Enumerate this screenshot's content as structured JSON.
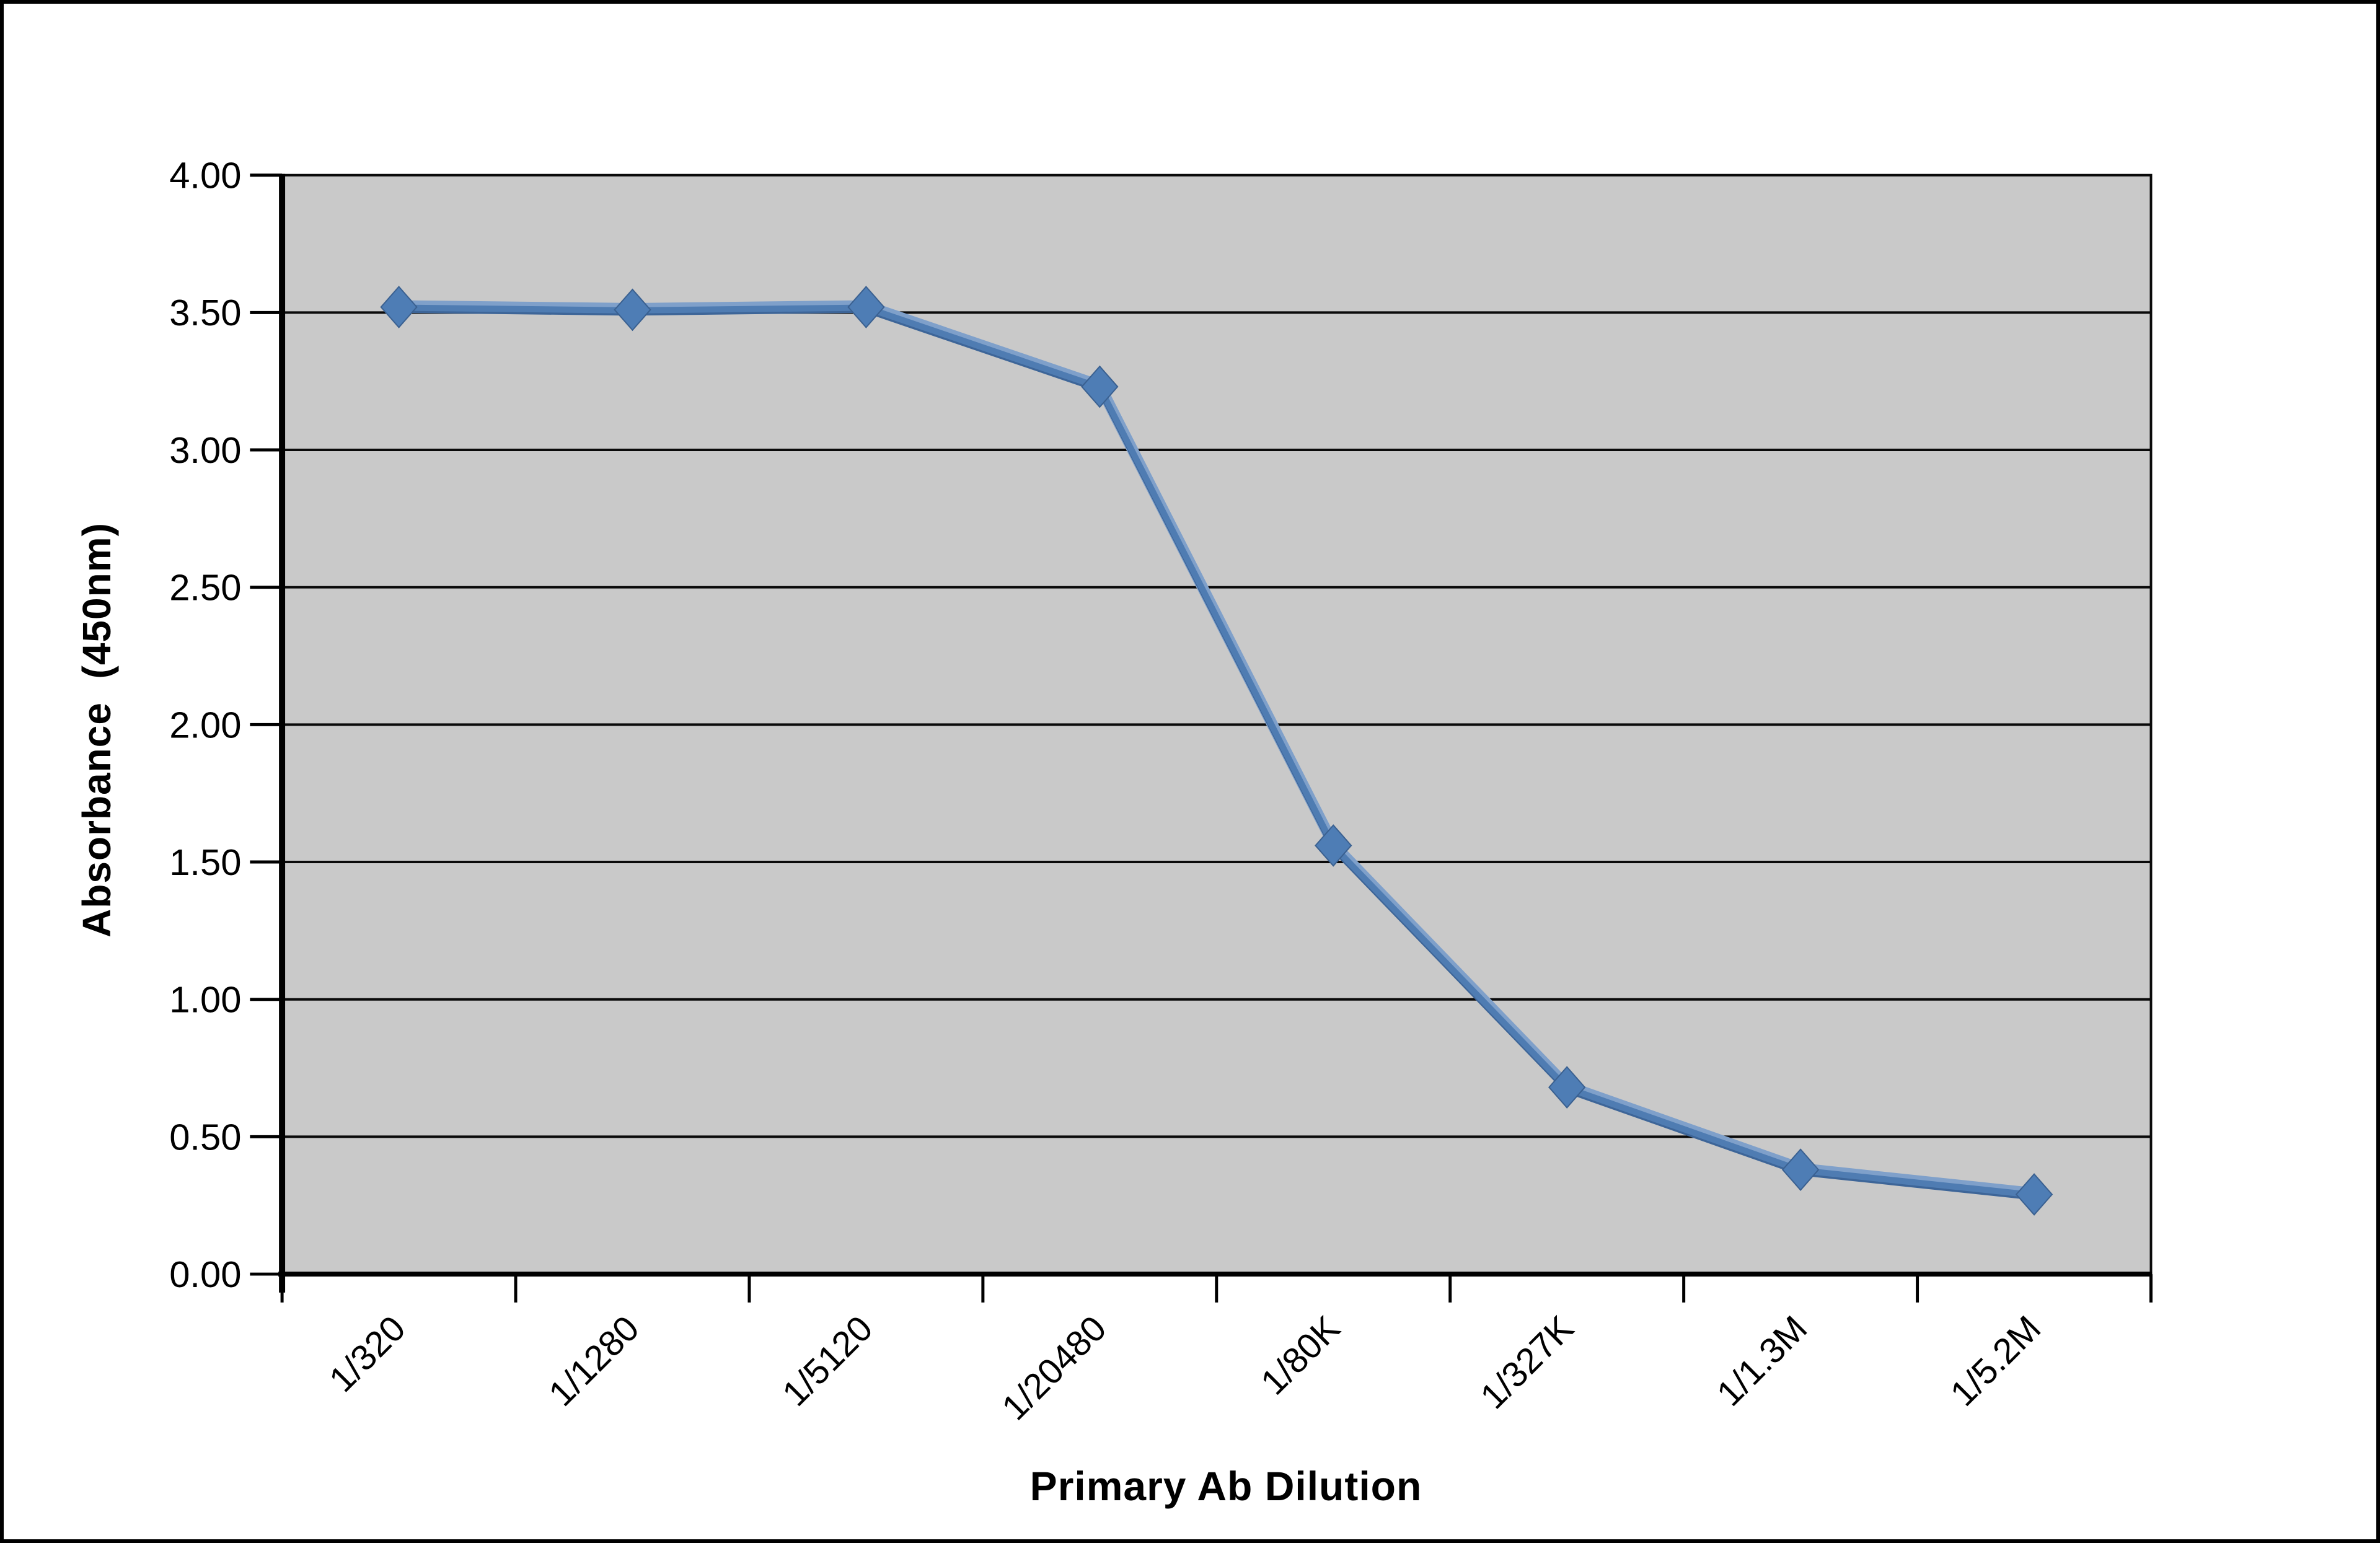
{
  "chart_data": {
    "type": "line",
    "categories": [
      "1/320",
      "1/1280",
      "1/5120",
      "1/20480",
      "1/80K",
      "1/327K",
      "1/1.3M",
      "1/5.2M"
    ],
    "series": [
      {
        "name": "Absorbance",
        "values": [
          3.52,
          3.51,
          3.52,
          3.23,
          1.56,
          0.68,
          0.38,
          0.29
        ]
      }
    ],
    "title": "",
    "xlabel": "Primary Ab Dilution",
    "ylabel": "Absorbance  (450nm)",
    "ylim": [
      0,
      4
    ],
    "ytick_step": 0.5,
    "y_tick_labels": [
      "4.00",
      "3.50",
      "3.00",
      "2.50",
      "2.00",
      "1.50",
      "1.00",
      "0.50",
      "0.00"
    ],
    "grid": "on",
    "legend": "none",
    "marker": "diamond",
    "colors": {
      "line_light": "#7FA0CA",
      "line_dark": "#3D6598",
      "line_main": "#4F7CB2",
      "marker_fill": "#4E7DB5",
      "marker_edge": "#3A6090",
      "plot_bg": "#C9C9C9",
      "gridline": "#0a0a0a",
      "axis": "#000000",
      "page_bg": "#FFFFFF",
      "frame_border": "#000000",
      "text": "#000000"
    }
  }
}
